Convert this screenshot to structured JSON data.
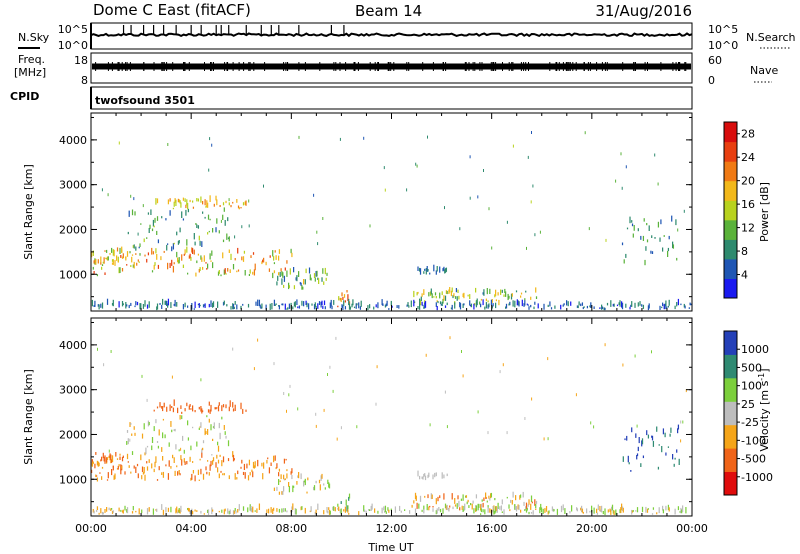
{
  "header": {
    "station": "Dome C East (fitACF)",
    "beam": "Beam 14",
    "date": "31/Aug/2016"
  },
  "colors": {
    "power": [
      "#1a1af0",
      "#1f56b4",
      "#2e8a6e",
      "#5ab23a",
      "#b8d21e",
      "#f2b81a",
      "#f07a14",
      "#e83f10",
      "#d80d0d"
    ],
    "velocity_ascending": [
      "#e00c0c",
      "#f06418",
      "#f5a519",
      "#bdbdbd",
      "#7ccf3c",
      "#2f8a72",
      "#2440b8"
    ],
    "noise_sky_line": "#000000"
  },
  "chart_data": [
    {
      "type": "line",
      "panel": "Noise",
      "ylabel_left": "N.Sky",
      "ylabel_right": "N.Search",
      "y_scale": "log",
      "yticks_left": [
        "10^5",
        "10^0"
      ],
      "yticks_right": [
        "10^5",
        "10^0"
      ],
      "x_range_hours": [
        0,
        24
      ],
      "level_fraction_of_axis": 0.45,
      "spike_hours": [
        1.3,
        1.6,
        2.1,
        2.5,
        2.9,
        3.4,
        4.0,
        4.4,
        5.0,
        5.2,
        5.5,
        6.2,
        6.8,
        7.2,
        7.5,
        8.3,
        9.6,
        10.1
      ]
    },
    {
      "type": "line",
      "panel": "Freq / Nave",
      "ylabel_left": [
        "Freq.",
        "[MHz]"
      ],
      "ylabel_right": "Nave",
      "yticks_left": [
        "18",
        "8"
      ],
      "yticks_right": [
        "60",
        "0"
      ],
      "x_range_hours": [
        0,
        24
      ],
      "band_fraction_of_axis": [
        0.35,
        0.55
      ]
    },
    {
      "type": "text",
      "panel": "CPID",
      "label": "CPID",
      "value": "twofsound 3501"
    },
    {
      "type": "heatmap",
      "panel": "Power",
      "ylabel": "Slant Range [km]",
      "yticks": [
        "1000",
        "2000",
        "3000",
        "4000"
      ],
      "y_range_km": [
        180,
        4600
      ],
      "x_range_hours": [
        0,
        24
      ],
      "colorbar_label": "Power [dB]",
      "colorbar_ticks": [
        "4",
        "8",
        "12",
        "16",
        "20",
        "24",
        "28"
      ],
      "colorbar_range": [
        0,
        30
      ],
      "regions": [
        {
          "t": [
            0.0,
            8.0
          ],
          "r": [
            950,
            1500
          ],
          "v": [
            10,
            26
          ]
        },
        {
          "t": [
            0.0,
            1.4
          ],
          "r": [
            1200,
            1550
          ],
          "v": [
            12,
            24
          ]
        },
        {
          "t": [
            1.4,
            5.5
          ],
          "r": [
            1500,
            2400
          ],
          "v": [
            6,
            14
          ]
        },
        {
          "t": [
            2.5,
            6.2
          ],
          "r": [
            2450,
            2650
          ],
          "v": [
            14,
            22
          ]
        },
        {
          "t": [
            7.2,
            9.5
          ],
          "r": [
            650,
            1050
          ],
          "v": [
            4,
            18
          ]
        },
        {
          "t": [
            9.8,
            10.3
          ],
          "r": [
            250,
            600
          ],
          "v": [
            16,
            26
          ]
        },
        {
          "t": [
            12.8,
            17.8
          ],
          "r": [
            300,
            600
          ],
          "v": [
            6,
            20
          ]
        },
        {
          "t": [
            13.0,
            14.2
          ],
          "r": [
            980,
            1080
          ],
          "v": [
            4,
            8
          ]
        },
        {
          "t": [
            21.2,
            23.5
          ],
          "r": [
            1100,
            2200
          ],
          "v": [
            4,
            12
          ]
        },
        {
          "t": [
            0.0,
            24.0
          ],
          "r": [
            200,
            320
          ],
          "v": [
            2,
            10
          ]
        }
      ]
    },
    {
      "type": "heatmap",
      "panel": "Velocity",
      "ylabel": "Slant Range [km]",
      "yticks": [
        "1000",
        "2000",
        "3000",
        "4000"
      ],
      "y_range_km": [
        180,
        4600
      ],
      "x_range_hours": [
        0,
        24
      ],
      "xticks": [
        "00:00",
        "04:00",
        "08:00",
        "12:00",
        "16:00",
        "20:00",
        "00:00"
      ],
      "xlabel": "Time UT",
      "colorbar_label": "Velocity",
      "colorbar_unit": "[m s",
      "colorbar_unit_exponent": "-1",
      "colorbar_ticks": [
        "-1000",
        "-500",
        "-100",
        "-25",
        "25",
        "100",
        "500",
        "1000"
      ],
      "regions": [
        {
          "t": [
            0.0,
            8.0
          ],
          "r": [
            950,
            1500
          ],
          "c": [
            1,
            2
          ]
        },
        {
          "t": [
            0.0,
            1.4
          ],
          "r": [
            1200,
            1550
          ],
          "c": [
            1,
            2
          ]
        },
        {
          "t": [
            1.4,
            5.5
          ],
          "r": [
            1500,
            2400
          ],
          "c": [
            2,
            4
          ]
        },
        {
          "t": [
            2.5,
            6.2
          ],
          "r": [
            2450,
            2650
          ],
          "c": [
            1,
            1
          ]
        },
        {
          "t": [
            7.2,
            9.5
          ],
          "r": [
            650,
            1050
          ],
          "c": [
            2,
            4
          ]
        },
        {
          "t": [
            9.8,
            10.3
          ],
          "r": [
            250,
            600
          ],
          "c": [
            4,
            5
          ]
        },
        {
          "t": [
            12.8,
            17.8
          ],
          "r": [
            300,
            600
          ],
          "c": [
            1,
            4
          ]
        },
        {
          "t": [
            13.0,
            14.2
          ],
          "r": [
            980,
            1080
          ],
          "c": [
            3,
            3
          ]
        },
        {
          "t": [
            21.2,
            23.5
          ],
          "r": [
            1100,
            2200
          ],
          "c": [
            5,
            6
          ]
        },
        {
          "t": [
            0.0,
            24.0
          ],
          "r": [
            200,
            320
          ],
          "c": [
            2,
            4
          ]
        }
      ]
    }
  ]
}
